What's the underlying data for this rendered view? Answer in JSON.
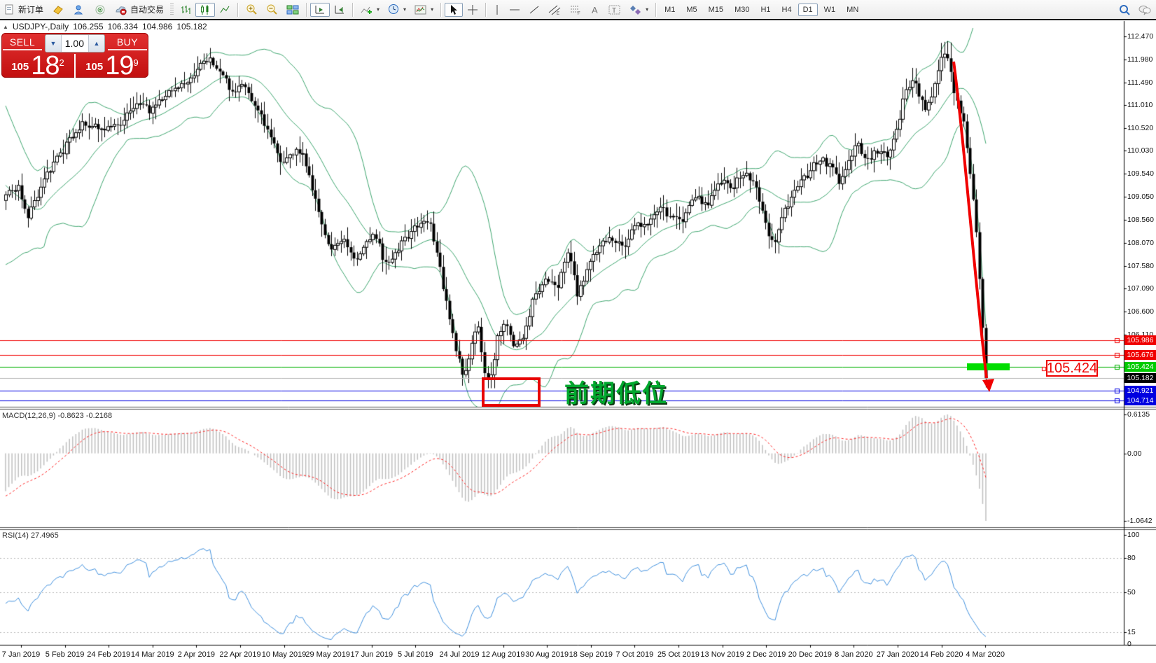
{
  "toolbar": {
    "new_order": "新订单",
    "auto_trading": "自动交易",
    "timeframes": [
      "M1",
      "M5",
      "M15",
      "M30",
      "H1",
      "H4",
      "D1",
      "W1",
      "MN"
    ],
    "active_timeframe": "D1"
  },
  "title": {
    "collapse_glyph": "▲",
    "symbol_period": "USDJPY-,Daily",
    "open": "106.255",
    "high": "106.334",
    "low": "104.986",
    "close": "105.182"
  },
  "trade_panel": {
    "sell": "SELL",
    "buy": "BUY",
    "volume": "1.00",
    "down_glyph": "▼",
    "up_glyph": "▲",
    "bid_small": "105",
    "bid_big": "18",
    "bid_sup": "2",
    "ask_small": "105",
    "ask_big": "19",
    "ask_sup": "9"
  },
  "price_axis": [
    "112.470",
    "111.980",
    "111.490",
    "111.010",
    "110.520",
    "110.030",
    "109.540",
    "109.050",
    "108.560",
    "108.070",
    "107.580",
    "107.090",
    "106.600",
    "106.110"
  ],
  "price_lines": [
    {
      "value": 105.986,
      "label": "105.986",
      "line": "#f00000",
      "bg": "#f00000",
      "fg": "#ffffff"
    },
    {
      "value": 105.676,
      "label": "105.676",
      "line": "#f00000",
      "bg": "#f00000",
      "fg": "#ffffff"
    },
    {
      "value": 105.424,
      "label": "105.424",
      "line": "#00b000",
      "bg": "#00cc00",
      "fg": "#ffffff"
    },
    {
      "value": 105.182,
      "label": "105.182",
      "line": "#b4b4b4",
      "bg": "#000000",
      "fg": "#ffffff"
    },
    {
      "value": 104.921,
      "label": "104.921",
      "line": "#0000e0",
      "bg": "#0000e0",
      "fg": "#ffffff"
    },
    {
      "value": 104.714,
      "label": "104.714",
      "line": "#0000e0",
      "bg": "#0000e0",
      "fg": "#ffffff"
    }
  ],
  "macd": {
    "name": "MACD(12,26,9)",
    "main_value": "-0.8623",
    "signal_value": "-0.2168",
    "axis_max": "0.6135",
    "axis_zero": "0.00",
    "axis_min": "-1.0642"
  },
  "rsi": {
    "name": "RSI(14)",
    "value": "27.4965",
    "axis_top": "100",
    "levels": [
      "80",
      "50",
      "15"
    ],
    "level_values": [
      80,
      50,
      15
    ],
    "axis_bottom": "0"
  },
  "annotations": {
    "support_zone_text": "前期低位",
    "price_flag": "105.424"
  },
  "time_axis": [
    "7 Jan 2019",
    "5 Feb 2019",
    "24 Feb 2019",
    "14 Mar 2019",
    "2 Apr 2019",
    "22 Apr 2019",
    "10 May 2019",
    "29 May 2019",
    "17 Jun 2019",
    "5 Jul 2019",
    "24 Jul 2019",
    "12 Aug 2019",
    "30 Aug 2019",
    "18 Sep 2019",
    "7 Oct 2019",
    "25 Oct 2019",
    "13 Nov 2019",
    "2 Dec 2019",
    "20 Dec 2019",
    "8 Jan 2020",
    "27 Jan 2020",
    "14 Feb 2020",
    "4 Mar 2020"
  ],
  "series": {
    "anchors": [
      [
        -175,
        112.0
      ],
      [
        -120,
        111.3
      ],
      [
        -70,
        110.4
      ],
      [
        -45,
        109.7
      ],
      [
        -32,
        109.0
      ],
      [
        -24,
        107.6
      ],
      [
        -20,
        108.1
      ],
      [
        -12,
        108.5
      ],
      [
        -2,
        108.8
      ],
      [
        8,
        109.05
      ],
      [
        25,
        109.3
      ],
      [
        40,
        108.65
      ],
      [
        55,
        109.1
      ],
      [
        70,
        109.6
      ],
      [
        95,
        110.15
      ],
      [
        120,
        110.65
      ],
      [
        145,
        110.45
      ],
      [
        170,
        110.6
      ],
      [
        195,
        111.1
      ],
      [
        215,
        110.85
      ],
      [
        240,
        111.3
      ],
      [
        265,
        111.5
      ],
      [
        285,
        111.85
      ],
      [
        300,
        112.0
      ],
      [
        315,
        111.7
      ],
      [
        330,
        111.3
      ],
      [
        350,
        111.45
      ],
      [
        365,
        110.95
      ],
      [
        385,
        110.4
      ],
      [
        400,
        109.8
      ],
      [
        415,
        109.95
      ],
      [
        430,
        110.05
      ],
      [
        445,
        109.3
      ],
      [
        460,
        108.4
      ],
      [
        475,
        107.9
      ],
      [
        490,
        108.15
      ],
      [
        505,
        107.7
      ],
      [
        520,
        108.0
      ],
      [
        535,
        108.3
      ],
      [
        550,
        107.6
      ],
      [
        565,
        107.9
      ],
      [
        580,
        108.15
      ],
      [
        595,
        108.45
      ],
      [
        612,
        108.6
      ],
      [
        625,
        107.75
      ],
      [
        638,
        106.7
      ],
      [
        650,
        105.8
      ],
      [
        662,
        105.2
      ],
      [
        672,
        105.75
      ],
      [
        682,
        106.35
      ],
      [
        692,
        105.35
      ],
      [
        700,
        105.1
      ],
      [
        710,
        106.05
      ],
      [
        722,
        106.35
      ],
      [
        735,
        105.85
      ],
      [
        748,
        106.1
      ],
      [
        762,
        106.9
      ],
      [
        778,
        107.25
      ],
      [
        795,
        107.1
      ],
      [
        812,
        107.85
      ],
      [
        825,
        106.95
      ],
      [
        838,
        107.45
      ],
      [
        855,
        108.0
      ],
      [
        872,
        108.2
      ],
      [
        890,
        107.95
      ],
      [
        908,
        108.55
      ],
      [
        925,
        108.4
      ],
      [
        942,
        108.85
      ],
      [
        958,
        108.6
      ],
      [
        975,
        108.5
      ],
      [
        992,
        109.1
      ],
      [
        1010,
        108.85
      ],
      [
        1028,
        109.4
      ],
      [
        1045,
        109.25
      ],
      [
        1062,
        109.55
      ],
      [
        1078,
        109.4
      ],
      [
        1092,
        108.5
      ],
      [
        1105,
        107.95
      ],
      [
        1118,
        108.65
      ],
      [
        1135,
        109.2
      ],
      [
        1152,
        109.5
      ],
      [
        1170,
        109.9
      ],
      [
        1188,
        109.65
      ],
      [
        1200,
        109.3
      ],
      [
        1212,
        109.9
      ],
      [
        1225,
        110.15
      ],
      [
        1238,
        109.8
      ],
      [
        1252,
        110.05
      ],
      [
        1265,
        109.9
      ],
      [
        1278,
        110.35
      ],
      [
        1290,
        111.1
      ],
      [
        1302,
        111.6
      ],
      [
        1312,
        111.25
      ],
      [
        1322,
        110.9
      ],
      [
        1332,
        111.25
      ],
      [
        1342,
        111.95
      ],
      [
        1352,
        112.2
      ],
      [
        1360,
        111.45
      ],
      [
        1368,
        111.05
      ],
      [
        1376,
        110.6
      ],
      [
        1383,
        109.9
      ],
      [
        1390,
        108.95
      ],
      [
        1396,
        107.95
      ],
      [
        1401,
        106.95
      ],
      [
        1404,
        106.3
      ],
      [
        1408,
        105.18
      ]
    ]
  }
}
